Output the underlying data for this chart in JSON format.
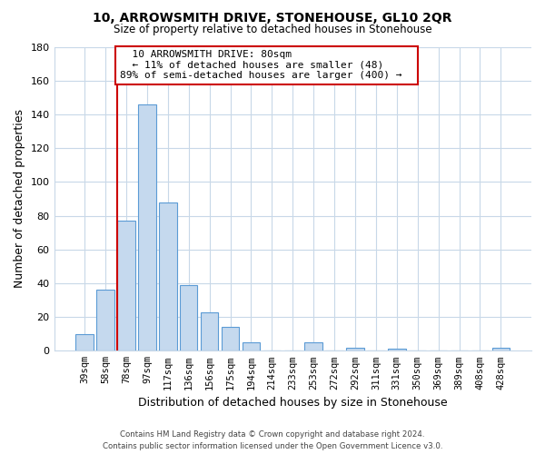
{
  "title": "10, ARROWSMITH DRIVE, STONEHOUSE, GL10 2QR",
  "subtitle": "Size of property relative to detached houses in Stonehouse",
  "xlabel": "Distribution of detached houses by size in Stonehouse",
  "ylabel": "Number of detached properties",
  "bar_labels": [
    "39sqm",
    "58sqm",
    "78sqm",
    "97sqm",
    "117sqm",
    "136sqm",
    "156sqm",
    "175sqm",
    "194sqm",
    "214sqm",
    "233sqm",
    "253sqm",
    "272sqm",
    "292sqm",
    "311sqm",
    "331sqm",
    "350sqm",
    "369sqm",
    "389sqm",
    "408sqm",
    "428sqm"
  ],
  "bar_values": [
    10,
    36,
    77,
    146,
    88,
    39,
    23,
    14,
    5,
    0,
    0,
    5,
    0,
    2,
    0,
    1,
    0,
    0,
    0,
    0,
    2
  ],
  "bar_color": "#c5d9ee",
  "bar_edge_color": "#5b9bd5",
  "vline_color": "#cc0000",
  "ylim": [
    0,
    180
  ],
  "yticks": [
    0,
    20,
    40,
    60,
    80,
    100,
    120,
    140,
    160,
    180
  ],
  "annotation_title": "10 ARROWSMITH DRIVE: 80sqm",
  "annotation_line1": "← 11% of detached houses are smaller (48)",
  "annotation_line2": "89% of semi-detached houses are larger (400) →",
  "footer_line1": "Contains HM Land Registry data © Crown copyright and database right 2024.",
  "footer_line2": "Contains public sector information licensed under the Open Government Licence v3.0.",
  "background_color": "#ffffff",
  "grid_color": "#c8d8e8"
}
